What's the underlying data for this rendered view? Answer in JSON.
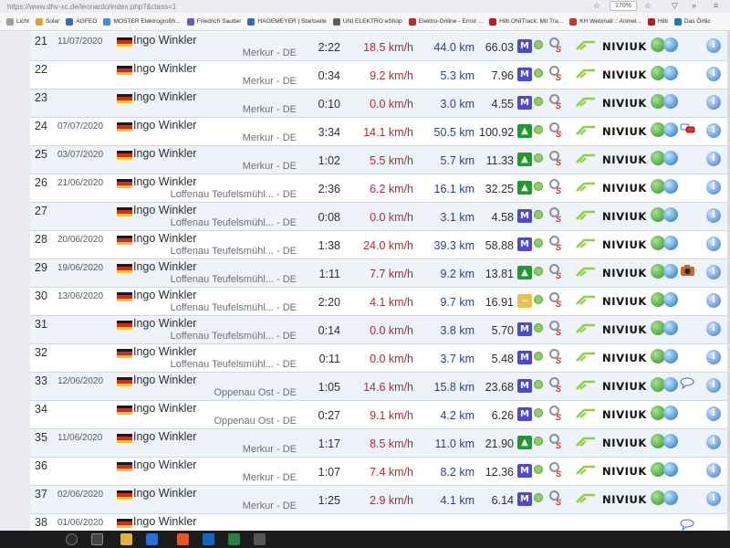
{
  "browser": {
    "url": "https://www.dhv-xc.de/leonardo/index.php?&class=1",
    "zoom": "170%"
  },
  "bookmarks": [
    {
      "label": "Licht",
      "color": "#9aa0a6"
    },
    {
      "label": "Solar",
      "color": "#d9a33b"
    },
    {
      "label": "AGFEO",
      "color": "#3a6bb5"
    },
    {
      "label": "MOSTER Elektrogroßh...",
      "color": "#3a8ee0"
    },
    {
      "label": "Friedrich Sautter",
      "color": "#6b5bb0"
    },
    {
      "label": "HAGEMEYER | Startseite",
      "color": "#2f6bb0"
    },
    {
      "label": "UNI ELEKTRO eShop",
      "color": "#5b5e66"
    },
    {
      "label": "Elektro-Online - Ernst ...",
      "color": "#b82f2f"
    },
    {
      "label": "Hilti ONITrack: Mit Tra...",
      "color": "#b01e28"
    },
    {
      "label": "KH Webmail :: Anmel...",
      "color": "#c0392b"
    },
    {
      "label": "Hilti",
      "color": "#b01e28"
    },
    {
      "label": "Das Örtlic",
      "color": "#2b6fc9"
    }
  ],
  "colors": {
    "free_flight": "#4c49d4",
    "fai_triangle": "#1f9a2e",
    "symbol": "#e7c24f",
    "speed_text": "#b2293a",
    "distance_text": "#2d3f8c"
  },
  "rows": [
    {
      "num": "21",
      "date": "11/07/2020",
      "pilot": "Ingo Winkler",
      "site": "Merkur - DE",
      "duration": "2:22",
      "speed": "18.5 km/h",
      "distance": "44.0 km",
      "points": "66.03",
      "type": "free",
      "glider": "NIVIUK",
      "extra": ""
    },
    {
      "num": "22",
      "date": "",
      "pilot": "Ingo Winkler",
      "site": "Merkur - DE",
      "duration": "0:34",
      "speed": "9.2 km/h",
      "distance": "5.3 km",
      "points": "7.96",
      "type": "free",
      "glider": "NIVIUK",
      "extra": ""
    },
    {
      "num": "23",
      "date": "",
      "pilot": "Ingo Winkler",
      "site": "Merkur - DE",
      "duration": "0:10",
      "speed": "0.0 km/h",
      "distance": "3.0 km",
      "points": "4.55",
      "type": "free",
      "glider": "NIVIUK",
      "extra": ""
    },
    {
      "num": "24",
      "date": "07/07/2020",
      "pilot": "Ingo Winkler",
      "site": "Merkur - DE",
      "duration": "3:34",
      "speed": "14.1 km/h",
      "distance": "50.5 km",
      "points": "100.92",
      "type": "triangle",
      "glider": "NIVIUK",
      "extra": "chat"
    },
    {
      "num": "25",
      "date": "03/07/2020",
      "pilot": "Ingo Winkler",
      "site": "Merkur - DE",
      "duration": "1:02",
      "speed": "5.5 km/h",
      "distance": "5.7 km",
      "points": "11.33",
      "type": "triangle",
      "glider": "NIVIUK",
      "extra": ""
    },
    {
      "num": "26",
      "date": "21/06/2020",
      "pilot": "Ingo Winkler",
      "site": "Loffenau Teufelsmühl... - DE",
      "duration": "2:36",
      "speed": "6.2 km/h",
      "distance": "16.1 km",
      "points": "32.25",
      "type": "triangle",
      "glider": "NIVIUK",
      "extra": ""
    },
    {
      "num": "27",
      "date": "",
      "pilot": "Ingo Winkler",
      "site": "Loffenau Teufelsmühl... - DE",
      "duration": "0:08",
      "speed": "0.0 km/h",
      "distance": "3.1 km",
      "points": "4.58",
      "type": "free",
      "glider": "NIVIUK",
      "extra": ""
    },
    {
      "num": "28",
      "date": "20/06/2020",
      "pilot": "Ingo Winkler",
      "site": "Loffenau Teufelsmühl... - DE",
      "duration": "1:38",
      "speed": "24.0 km/h",
      "distance": "39.3 km",
      "points": "58.88",
      "type": "free",
      "glider": "NIVIUK",
      "extra": ""
    },
    {
      "num": "29",
      "date": "19/06/2020",
      "pilot": "Ingo Winkler",
      "site": "Loffenau Teufelsmühl... - DE",
      "duration": "1:11",
      "speed": "7.7 km/h",
      "distance": "9.2 km",
      "points": "13.81",
      "type": "triangle",
      "glider": "NIVIUK",
      "extra": "camera"
    },
    {
      "num": "30",
      "date": "13/06/2020",
      "pilot": "Ingo Winkler",
      "site": "Loffenau Teufelsmühl... - DE",
      "duration": "2:20",
      "speed": "4.1 km/h",
      "distance": "9.7 km",
      "points": "16.91",
      "type": "sym",
      "glider": "NIVIUK",
      "extra": ""
    },
    {
      "num": "31",
      "date": "",
      "pilot": "Ingo Winkler",
      "site": "Loffenau Teufelsmühl... - DE",
      "duration": "0:14",
      "speed": "0.0 km/h",
      "distance": "3.8 km",
      "points": "5.70",
      "type": "free",
      "glider": "NIVIUK",
      "extra": ""
    },
    {
      "num": "32",
      "date": "",
      "pilot": "Ingo Winkler",
      "site": "Loffenau Teufelsmühl... - DE",
      "duration": "0:11",
      "speed": "0.0 km/h",
      "distance": "3.7 km",
      "points": "5.48",
      "type": "free",
      "glider": "NIVIUK",
      "extra": ""
    },
    {
      "num": "33",
      "date": "12/06/2020",
      "pilot": "Ingo Winkler",
      "site": "Oppenau Ost - DE",
      "duration": "1:05",
      "speed": "14.6 km/h",
      "distance": "15.8 km",
      "points": "23.68",
      "type": "free",
      "glider": "NIVIUK",
      "extra": "comment"
    },
    {
      "num": "34",
      "date": "",
      "pilot": "Ingo Winkler",
      "site": "Oppenau Ost - DE",
      "duration": "0:27",
      "speed": "9.1 km/h",
      "distance": "4.2 km",
      "points": "6.26",
      "type": "free",
      "glider": "NIVIUK",
      "extra": ""
    },
    {
      "num": "35",
      "date": "11/06/2020",
      "pilot": "Ingo Winkler",
      "site": "Merkur - DE",
      "duration": "1:17",
      "speed": "8.5 km/h",
      "distance": "11.0 km",
      "points": "21.90",
      "type": "triangle",
      "glider": "NIVIUK",
      "extra": ""
    },
    {
      "num": "36",
      "date": "",
      "pilot": "Ingo Winkler",
      "site": "Merkur - DE",
      "duration": "1:07",
      "speed": "7.4 km/h",
      "distance": "8.2 km",
      "points": "12.36",
      "type": "free",
      "glider": "NIVIUK",
      "extra": ""
    },
    {
      "num": "37",
      "date": "02/06/2020",
      "pilot": "Ingo Winkler",
      "site": "Merkur - DE",
      "duration": "1:25",
      "speed": "2.9 km/h",
      "distance": "4.1 km",
      "points": "6.14",
      "type": "free",
      "glider": "NIVIUK",
      "extra": ""
    },
    {
      "num": "38",
      "date": "01/06/2020",
      "pilot": "Ingo Winkler",
      "site": "",
      "duration": "",
      "speed": "",
      "distance": "",
      "points": "",
      "type": "free",
      "glider": "",
      "extra": "comment"
    }
  ],
  "flag": {
    "stripes": [
      "#1a1a1a",
      "#d52b1e",
      "#f2c230"
    ]
  },
  "icons": {
    "flight_type_free": "free-flight-icon",
    "flight_type_triangle": "triangle-flight-icon",
    "validated": "validated-icon",
    "scoring_class": "sport-class-icon",
    "glider_logo": "niviuk-wing-logo-icon",
    "map": "map-icon",
    "google_earth": "google-earth-icon",
    "info": "info-icon"
  }
}
